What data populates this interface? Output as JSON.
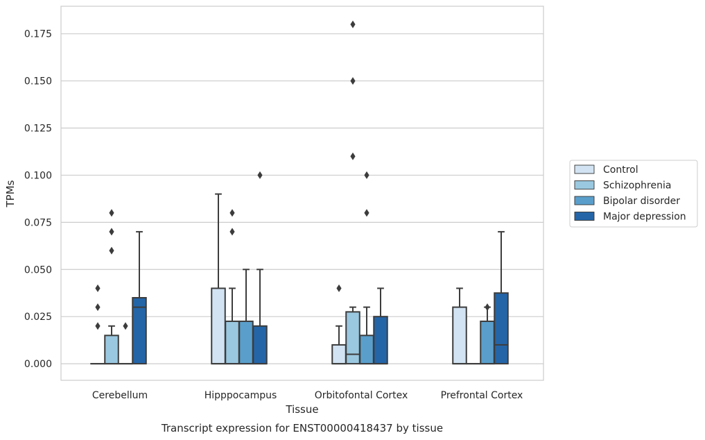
{
  "chart_data": {
    "type": "boxplot",
    "title": "Transcript expression for ENST00000418437 by tissue",
    "xlabel": "Tissue",
    "ylabel": "TPMs",
    "ylim": [
      -0.0088,
      0.1896
    ],
    "yticks": [
      "0.000",
      "0.025",
      "0.050",
      "0.075",
      "0.100",
      "0.125",
      "0.150",
      "0.175"
    ],
    "ytick_values": [
      0,
      0.025,
      0.05,
      0.075,
      0.1,
      0.125,
      0.15,
      0.175
    ],
    "grid": "horizontal",
    "legend_placement": "right",
    "categories": [
      "Cerebellum",
      "Hipppocampus",
      "Orbitofontal Cortex",
      "Prefrontal Cortex"
    ],
    "series": [
      {
        "name": "Control",
        "color": "#d2e3f3",
        "boxes": [
          {
            "whislo": 0,
            "q1": 0,
            "med": 0,
            "q3": 0,
            "whishi": 0,
            "fliers": [
              0.02,
              0.03,
              0.04
            ]
          },
          {
            "whislo": 0,
            "q1": 0,
            "med": 0,
            "q3": 0.04,
            "whishi": 0.09,
            "fliers": []
          },
          {
            "whislo": 0,
            "q1": 0,
            "med": 0,
            "q3": 0.01,
            "whishi": 0.02,
            "fliers": [
              0.04
            ]
          },
          {
            "whislo": 0,
            "q1": 0,
            "med": 0,
            "q3": 0.03,
            "whishi": 0.04,
            "fliers": []
          }
        ]
      },
      {
        "name": "Schizophrenia",
        "color": "#9ac8e0",
        "boxes": [
          {
            "whislo": 0,
            "q1": 0,
            "med": 0,
            "q3": 0.015,
            "whishi": 0.02,
            "fliers": [
              0.06,
              0.07,
              0.08
            ]
          },
          {
            "whislo": 0,
            "q1": 0,
            "med": 0,
            "q3": 0.0225,
            "whishi": 0.04,
            "fliers": [
              0.07,
              0.08
            ]
          },
          {
            "whislo": 0,
            "q1": 0,
            "med": 0.005,
            "q3": 0.0275,
            "whishi": 0.03,
            "fliers": [
              0.11,
              0.15,
              0.18
            ]
          },
          {
            "whislo": 0,
            "q1": 0,
            "med": 0,
            "q3": 0,
            "whishi": 0,
            "fliers": []
          }
        ]
      },
      {
        "name": "Bipolar disorder",
        "color": "#5a9fcc",
        "boxes": [
          {
            "whislo": 0,
            "q1": 0,
            "med": 0,
            "q3": 0,
            "whishi": 0,
            "fliers": [
              0.02
            ]
          },
          {
            "whislo": 0,
            "q1": 0,
            "med": 0,
            "q3": 0.0225,
            "whishi": 0.05,
            "fliers": []
          },
          {
            "whislo": 0,
            "q1": 0,
            "med": 0,
            "q3": 0.015,
            "whishi": 0.03,
            "fliers": [
              0.08,
              0.1
            ]
          },
          {
            "whislo": 0,
            "q1": 0,
            "med": 0,
            "q3": 0.0225,
            "whishi": 0.03,
            "fliers": [
              0.03
            ]
          }
        ]
      },
      {
        "name": "Major depression",
        "color": "#2465a8",
        "boxes": [
          {
            "whislo": 0,
            "q1": 0,
            "med": 0.03,
            "q3": 0.035,
            "whishi": 0.07,
            "fliers": []
          },
          {
            "whislo": 0,
            "q1": 0,
            "med": 0,
            "q3": 0.02,
            "whishi": 0.05,
            "fliers": [
              0.1
            ]
          },
          {
            "whislo": 0,
            "q1": 0,
            "med": 0,
            "q3": 0.025,
            "whishi": 0.04,
            "fliers": []
          },
          {
            "whislo": 0,
            "q1": 0,
            "med": 0.01,
            "q3": 0.0375,
            "whishi": 0.07,
            "fliers": []
          }
        ]
      }
    ]
  }
}
